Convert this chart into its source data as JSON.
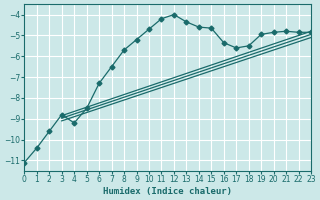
{
  "xlabel": "Humidex (Indice chaleur)",
  "bg_color": "#cce8e8",
  "line_color": "#1a6b6b",
  "grid_color": "#ffffff",
  "xlim": [
    0,
    23
  ],
  "ylim": [
    -11.5,
    -3.5
  ],
  "yticks": [
    -11,
    -10,
    -9,
    -8,
    -7,
    -6,
    -5,
    -4
  ],
  "xticks": [
    0,
    1,
    2,
    3,
    4,
    5,
    6,
    7,
    8,
    9,
    10,
    11,
    12,
    13,
    14,
    15,
    16,
    17,
    18,
    19,
    20,
    21,
    22,
    23
  ],
  "main_line_x": [
    0,
    1,
    2,
    3,
    4,
    5,
    6,
    7,
    8,
    9,
    10,
    11,
    12,
    13,
    14,
    15,
    16,
    17,
    18,
    19,
    20,
    21,
    22,
    23
  ],
  "main_line_y": [
    -11.1,
    -10.4,
    -9.6,
    -8.8,
    -9.2,
    -8.5,
    -7.3,
    -6.5,
    -5.7,
    -5.2,
    -4.7,
    -4.2,
    -4.0,
    -4.35,
    -4.6,
    -4.65,
    -5.35,
    -5.6,
    -5.5,
    -4.95,
    -4.85,
    -4.8,
    -4.85,
    -4.85
  ],
  "reg_line1_x": [
    3,
    23
  ],
  "reg_line1_y": [
    -8.85,
    -4.8
  ],
  "reg_line2_x": [
    3,
    23
  ],
  "reg_line2_y": [
    -9.1,
    -5.1
  ],
  "reg_line3_x": [
    3,
    23
  ],
  "reg_line3_y": [
    -8.97,
    -4.95
  ]
}
